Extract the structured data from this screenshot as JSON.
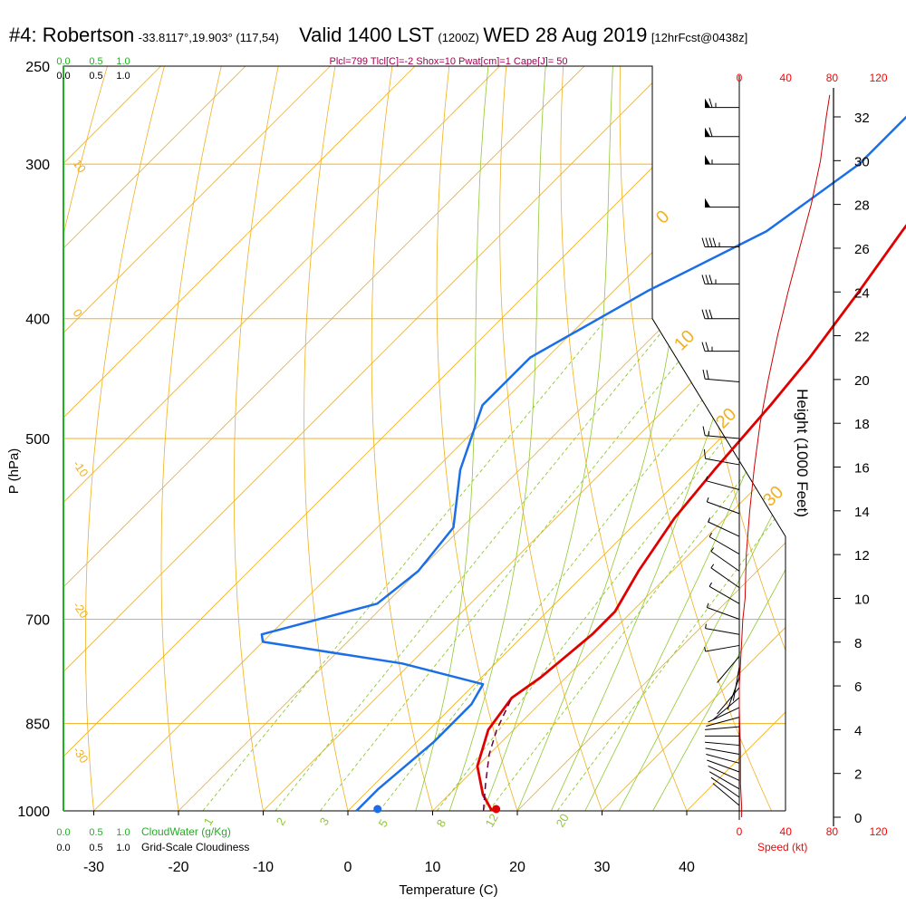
{
  "header": {
    "station": "#4: Robertson",
    "coords": "-33.8117°,19.903° (117,54)",
    "valid": "Valid 1400 LST",
    "utc": "(1200Z)",
    "date": "WED 28 Aug 2019",
    "forecast": "[12hrFcst@0438z]"
  },
  "indices_text": "Plcl=799 Tlcl[C]=-2 Shox=10 Pwat[cm]=1 Cape[J]= 50",
  "chart_data": {
    "type": "skew-t sounding",
    "xlabel": "Temperature (C)",
    "ylabel": "P (hPa)",
    "xlim": [
      -35,
      37
    ],
    "ylim_hpa": [
      1000,
      250
    ],
    "x_ticks": [
      -30,
      -20,
      -10,
      0,
      10,
      20,
      30,
      40
    ],
    "p_ticks": [
      250,
      300,
      400,
      500,
      700,
      850,
      1000
    ],
    "temperature": [
      [
        17,
        1000
      ],
      [
        14,
        970
      ],
      [
        10,
        920
      ],
      [
        7,
        860
      ],
      [
        6,
        810
      ],
      [
        7,
        780
      ],
      [
        8,
        720
      ],
      [
        8,
        690
      ],
      [
        6,
        640
      ],
      [
        4,
        580
      ],
      [
        3,
        530
      ],
      [
        2,
        470
      ],
      [
        1,
        430
      ],
      [
        -1,
        380
      ],
      [
        -3,
        340
      ],
      [
        -5,
        300
      ],
      [
        -5,
        260
      ]
    ],
    "dewpoint": [
      [
        1,
        1000
      ],
      [
        1,
        960
      ],
      [
        2,
        880
      ],
      [
        2,
        820
      ],
      [
        1,
        790
      ],
      [
        -11,
        760
      ],
      [
        -30,
        730
      ],
      [
        -31,
        720
      ],
      [
        -21,
        680
      ],
      [
        -20,
        640
      ],
      [
        -21,
        590
      ],
      [
        -27,
        530
      ],
      [
        -32,
        470
      ],
      [
        -32,
        430
      ],
      [
        -26,
        380
      ],
      [
        -19,
        340
      ],
      [
        -16,
        300
      ],
      [
        -16,
        260
      ]
    ],
    "parcel": [
      [
        16,
        1000
      ],
      [
        13,
        950
      ],
      [
        10,
        900
      ],
      [
        8,
        860
      ],
      [
        6,
        810
      ]
    ],
    "surface_temp": 17.5,
    "surface_dewpoint": 3.5,
    "wind_speed_profile_kt": [
      [
        2,
        0
      ],
      [
        2,
        500
      ],
      [
        1,
        1500
      ],
      [
        1,
        3000
      ],
      [
        0,
        5000
      ],
      [
        0,
        6000
      ],
      [
        1,
        7000
      ],
      [
        2,
        8000
      ],
      [
        3,
        9000
      ],
      [
        5,
        10000
      ],
      [
        6,
        12000
      ],
      [
        9,
        14000
      ],
      [
        13,
        16000
      ],
      [
        18,
        18000
      ],
      [
        25,
        20000
      ],
      [
        33,
        22000
      ],
      [
        42,
        24000
      ],
      [
        52,
        26000
      ],
      [
        62,
        28000
      ],
      [
        70,
        30000
      ],
      [
        75,
        32000
      ],
      [
        78,
        33000
      ]
    ],
    "wind_barbs": [
      {
        "p": 990,
        "dir": 310,
        "spd": 2
      },
      {
        "p": 975,
        "dir": 305,
        "spd": 3
      },
      {
        "p": 960,
        "dir": 300,
        "spd": 3
      },
      {
        "p": 945,
        "dir": 295,
        "spd": 3
      },
      {
        "p": 930,
        "dir": 290,
        "spd": 3
      },
      {
        "p": 915,
        "dir": 285,
        "spd": 4
      },
      {
        "p": 900,
        "dir": 280,
        "spd": 4
      },
      {
        "p": 885,
        "dir": 275,
        "spd": 4
      },
      {
        "p": 870,
        "dir": 270,
        "spd": 4
      },
      {
        "p": 855,
        "dir": 265,
        "spd": 4
      },
      {
        "p": 840,
        "dir": 255,
        "spd": 3
      },
      {
        "p": 825,
        "dir": 245,
        "spd": 3
      },
      {
        "p": 810,
        "dir": 230,
        "spd": 3
      },
      {
        "p": 795,
        "dir": 220,
        "spd": 3
      },
      {
        "p": 780,
        "dir": 200,
        "spd": 3
      },
      {
        "p": 765,
        "dir": 190,
        "spd": 3
      },
      {
        "p": 750,
        "dir": 220,
        "spd": 4
      },
      {
        "p": 735,
        "dir": 260,
        "spd": 5
      },
      {
        "p": 720,
        "dir": 280,
        "spd": 5
      },
      {
        "p": 700,
        "dir": 290,
        "spd": 6
      },
      {
        "p": 680,
        "dir": 300,
        "spd": 6
      },
      {
        "p": 660,
        "dir": 305,
        "spd": 7
      },
      {
        "p": 640,
        "dir": 305,
        "spd": 7
      },
      {
        "p": 620,
        "dir": 300,
        "spd": 8
      },
      {
        "p": 600,
        "dir": 295,
        "spd": 8
      },
      {
        "p": 575,
        "dir": 290,
        "spd": 9
      },
      {
        "p": 550,
        "dir": 285,
        "spd": 9
      },
      {
        "p": 525,
        "dir": 280,
        "spd": 10
      },
      {
        "p": 500,
        "dir": 275,
        "spd": 15
      },
      {
        "p": 450,
        "dir": 275,
        "spd": 20
      },
      {
        "p": 425,
        "dir": 270,
        "spd": 25
      },
      {
        "p": 400,
        "dir": 270,
        "spd": 30
      },
      {
        "p": 375,
        "dir": 270,
        "spd": 35
      },
      {
        "p": 350,
        "dir": 270,
        "spd": 45
      },
      {
        "p": 325,
        "dir": 270,
        "spd": 50
      },
      {
        "p": 300,
        "dir": 270,
        "spd": 55
      },
      {
        "p": 285,
        "dir": 270,
        "spd": 60
      },
      {
        "p": 270,
        "dir": 270,
        "spd": 65
      }
    ],
    "cloud_water_profile": [
      [
        1000,
        0
      ],
      [
        250,
        0
      ]
    ],
    "cloudiness_profile": [
      [
        1000,
        0
      ],
      [
        250,
        0
      ]
    ]
  },
  "labels": {
    "p_ticks": [
      "250",
      "300",
      "400",
      "500",
      "700",
      "850",
      "1000"
    ],
    "x_ticks": [
      "-30",
      "-20",
      "-10",
      "0",
      "10",
      "20",
      "30",
      "40"
    ],
    "height_ticks": [
      "0",
      "2",
      "4",
      "6",
      "8",
      "10",
      "12",
      "14",
      "16",
      "18",
      "20",
      "22",
      "24",
      "26",
      "28",
      "30",
      "32"
    ],
    "height_axis_label": "Height (1000 Feet)",
    "speed_ticks": [
      "0",
      "40",
      "80",
      "120"
    ],
    "speed_label": "Speed (kt)",
    "cloudwater_ticks": [
      "0.0",
      "0.5",
      "1.0"
    ],
    "cloudwater_label": "CloudWater (g/Kg)",
    "cloudiness_ticks": [
      "0.0",
      "0.5",
      "1.0"
    ],
    "cloudiness_label": "Grid-Scale Cloudiness",
    "dry_adiabat_labels": [
      "10",
      "0",
      "-10",
      "-20",
      "-30"
    ],
    "moist_adiabat_labels": [
      "0",
      "10",
      "20",
      "30"
    ],
    "mixing_ratio_labels": [
      "1",
      "2",
      "3",
      "5",
      "8",
      "12",
      "20"
    ]
  },
  "colors": {
    "temperature": "#e00000",
    "dewpoint": "#1a6ee8",
    "parcel": "#6a0040",
    "isobar": "#f0b020",
    "dry_adiabat": "#f0b020",
    "moist_adiabat": "#90c830",
    "mixing_ratio": "#90c830",
    "cloudwater": "#20b020",
    "indices": "#a00050",
    "speed_axis": "#ff0000"
  }
}
